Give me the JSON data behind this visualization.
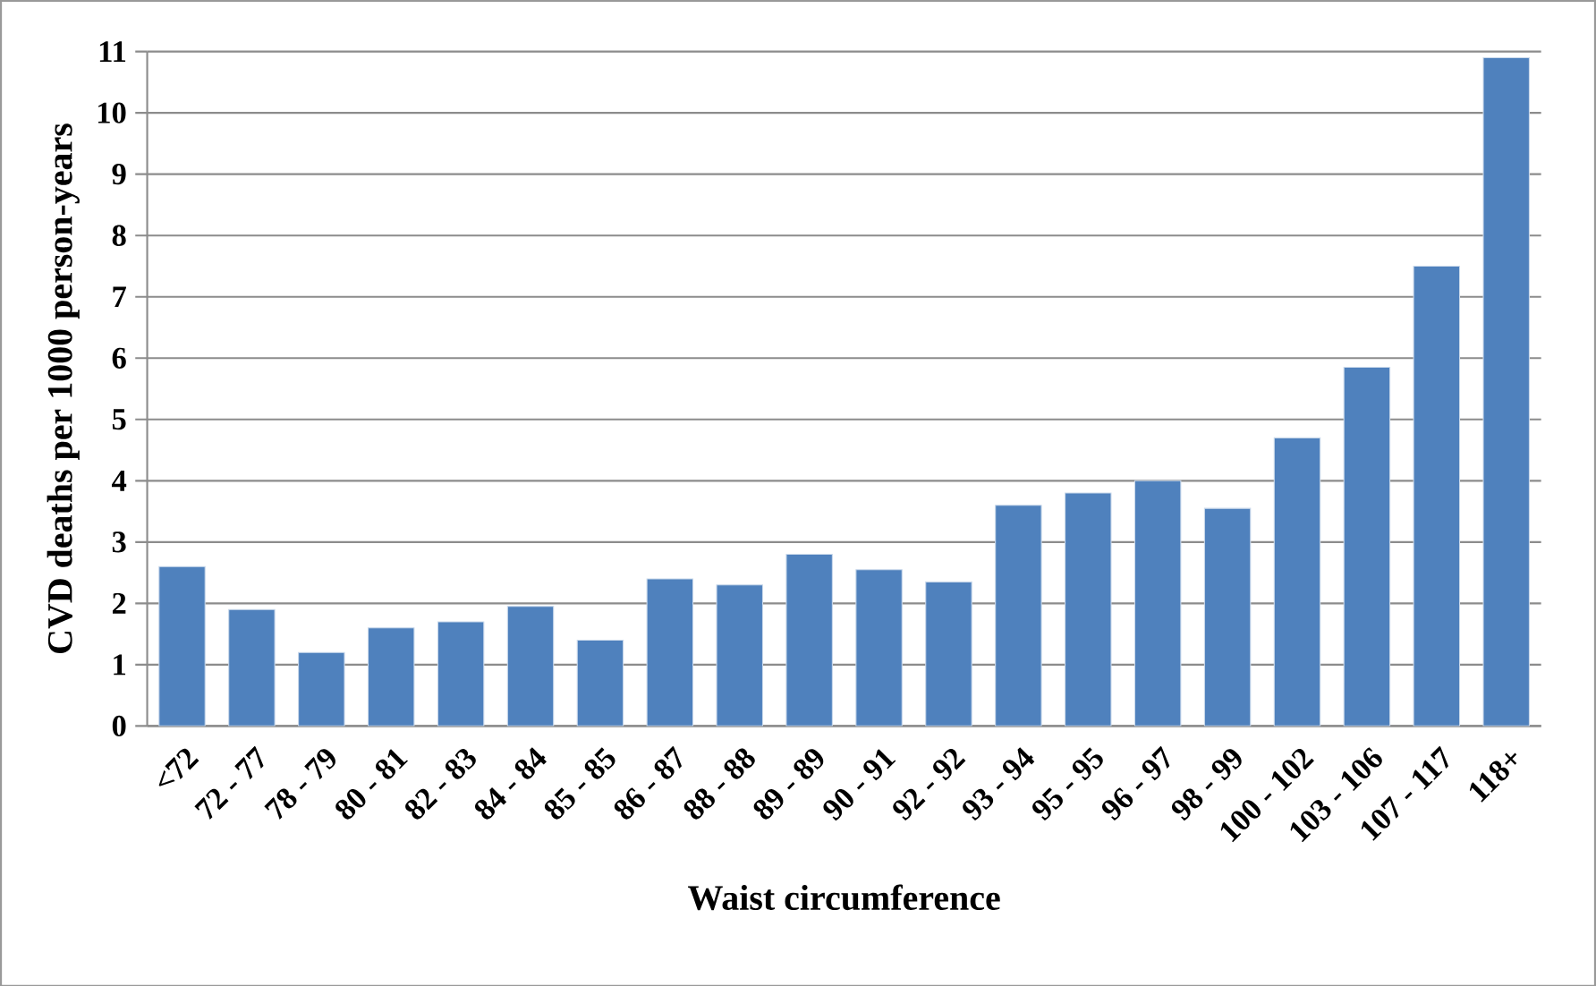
{
  "chart_data": {
    "type": "bar",
    "xlabel": "Waist circumference",
    "ylabel": "CVD deaths per 1000 person-years",
    "categories": [
      "<72",
      "72 - 77",
      "78 - 79",
      "80 - 81",
      "82 - 83",
      "84 - 84",
      "85 - 85",
      "86 - 87",
      "88 - 88",
      "89 - 89",
      "90 - 91",
      "92 - 92",
      "93 - 94",
      "95 - 95",
      "96 - 97",
      "98 - 99",
      "100 - 102",
      "103 - 106",
      "107 - 117",
      "118+"
    ],
    "values": [
      2.6,
      1.9,
      1.2,
      1.6,
      1.7,
      1.95,
      1.4,
      2.4,
      2.3,
      2.8,
      2.55,
      2.35,
      3.6,
      3.8,
      4.0,
      3.55,
      4.7,
      5.85,
      7.5,
      10.9
    ],
    "color": "#4f81bd",
    "ylim": [
      0,
      11
    ],
    "yticks": [
      0,
      1,
      2,
      3,
      4,
      5,
      6,
      7,
      8,
      9,
      10,
      11
    ],
    "grid": "y"
  }
}
